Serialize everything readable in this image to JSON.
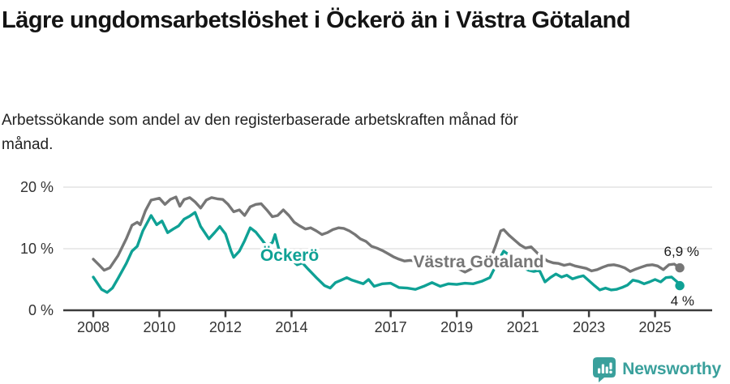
{
  "header": {
    "title": "Lägre ungdomsarbetslöshet i Öckerö än i Västra Götaland",
    "subtitle": "Arbetssökande som andel av den registerbaserade arbetskraften månad för månad."
  },
  "footer": {
    "brand": "Newsworthy",
    "logo_icon": "bar-chart-speech-bubble",
    "brand_color": "#3aa09c"
  },
  "chart_data": {
    "type": "line",
    "title": "Lägre ungdomsarbetslöshet i Öckerö än i Västra Götaland",
    "unit": "%",
    "grid": true,
    "legend_position": "inline-labels",
    "x_axis": {
      "range_years": [
        2007.1,
        2026.7
      ],
      "ticks": [
        {
          "label": "2008",
          "year": 2008
        },
        {
          "label": "2010",
          "year": 2010
        },
        {
          "label": "2012",
          "year": 2012
        },
        {
          "label": "2014",
          "year": 2014
        },
        {
          "label": "2017",
          "year": 2017
        },
        {
          "label": "2019",
          "year": 2019
        },
        {
          "label": "2021",
          "year": 2021
        },
        {
          "label": "2023",
          "year": 2023
        },
        {
          "label": "2025",
          "year": 2025
        }
      ]
    },
    "y_axis": {
      "range": [
        0,
        21
      ],
      "ticks": [
        {
          "label": "0 %",
          "value": 0
        },
        {
          "label": "10 %",
          "value": 10
        },
        {
          "label": "20 %",
          "value": 20
        }
      ]
    },
    "series": [
      {
        "name": "Öckerö",
        "color": "#0fa195",
        "end_label": "4 %",
        "end_value": 4.0,
        "points": [
          [
            2008.0,
            5.4
          ],
          [
            2008.25,
            3.4
          ],
          [
            2008.42,
            2.9
          ],
          [
            2008.58,
            3.6
          ],
          [
            2008.75,
            5.2
          ],
          [
            2009.0,
            7.6
          ],
          [
            2009.17,
            9.6
          ],
          [
            2009.33,
            10.4
          ],
          [
            2009.5,
            12.9
          ],
          [
            2009.75,
            15.4
          ],
          [
            2009.92,
            13.9
          ],
          [
            2010.08,
            14.5
          ],
          [
            2010.25,
            12.6
          ],
          [
            2010.42,
            13.2
          ],
          [
            2010.58,
            13.7
          ],
          [
            2010.75,
            14.8
          ],
          [
            2010.92,
            15.3
          ],
          [
            2011.08,
            15.9
          ],
          [
            2011.25,
            13.6
          ],
          [
            2011.5,
            11.6
          ],
          [
            2011.67,
            12.6
          ],
          [
            2011.83,
            13.6
          ],
          [
            2012.0,
            12.4
          ],
          [
            2012.17,
            9.6
          ],
          [
            2012.25,
            8.6
          ],
          [
            2012.42,
            9.6
          ],
          [
            2012.58,
            11.3
          ],
          [
            2012.75,
            13.4
          ],
          [
            2012.92,
            12.7
          ],
          [
            2013.08,
            11.6
          ],
          [
            2013.25,
            10.4
          ],
          [
            2013.42,
            11.0
          ],
          [
            2013.5,
            12.3
          ],
          [
            2013.62,
            9.8
          ],
          [
            2013.83,
            9.3
          ],
          [
            2014.0,
            8.2
          ],
          [
            2014.17,
            7.4
          ],
          [
            2014.33,
            7.7
          ],
          [
            2014.5,
            6.7
          ],
          [
            2014.75,
            5.3
          ],
          [
            2015.0,
            4.0
          ],
          [
            2015.17,
            3.6
          ],
          [
            2015.33,
            4.5
          ],
          [
            2015.5,
            4.9
          ],
          [
            2015.67,
            5.3
          ],
          [
            2015.83,
            4.9
          ],
          [
            2016.0,
            4.6
          ],
          [
            2016.17,
            4.3
          ],
          [
            2016.33,
            5.0
          ],
          [
            2016.5,
            3.9
          ],
          [
            2016.75,
            4.3
          ],
          [
            2017.0,
            4.4
          ],
          [
            2017.25,
            3.7
          ],
          [
            2017.5,
            3.6
          ],
          [
            2017.75,
            3.4
          ],
          [
            2018.0,
            3.9
          ],
          [
            2018.25,
            4.5
          ],
          [
            2018.5,
            3.9
          ],
          [
            2018.75,
            4.3
          ],
          [
            2019.0,
            4.2
          ],
          [
            2019.25,
            4.4
          ],
          [
            2019.5,
            4.3
          ],
          [
            2019.75,
            4.7
          ],
          [
            2020.0,
            5.3
          ],
          [
            2020.25,
            8.0
          ],
          [
            2020.42,
            9.6
          ],
          [
            2020.58,
            9.0
          ],
          [
            2020.75,
            8.2
          ],
          [
            2021.0,
            7.0
          ],
          [
            2021.17,
            6.5
          ],
          [
            2021.33,
            6.3
          ],
          [
            2021.5,
            6.5
          ],
          [
            2021.67,
            4.6
          ],
          [
            2021.83,
            5.3
          ],
          [
            2022.0,
            5.9
          ],
          [
            2022.17,
            5.4
          ],
          [
            2022.33,
            5.7
          ],
          [
            2022.5,
            5.1
          ],
          [
            2022.67,
            5.4
          ],
          [
            2022.83,
            5.6
          ],
          [
            2023.0,
            4.8
          ],
          [
            2023.17,
            4.0
          ],
          [
            2023.33,
            3.3
          ],
          [
            2023.5,
            3.6
          ],
          [
            2023.67,
            3.3
          ],
          [
            2023.83,
            3.4
          ],
          [
            2024.0,
            3.7
          ],
          [
            2024.17,
            4.1
          ],
          [
            2024.33,
            4.9
          ],
          [
            2024.5,
            4.7
          ],
          [
            2024.67,
            4.3
          ],
          [
            2024.83,
            4.6
          ],
          [
            2025.0,
            5.0
          ],
          [
            2025.17,
            4.6
          ],
          [
            2025.33,
            5.3
          ],
          [
            2025.5,
            5.4
          ],
          [
            2025.67,
            4.6
          ],
          [
            2025.75,
            4.0
          ]
        ]
      },
      {
        "name": "Västra Götaland",
        "color": "#767676",
        "end_label": "6,9 %",
        "end_value": 6.9,
        "points": [
          [
            2008.0,
            8.3
          ],
          [
            2008.17,
            7.4
          ],
          [
            2008.33,
            6.5
          ],
          [
            2008.5,
            6.9
          ],
          [
            2008.75,
            8.9
          ],
          [
            2009.0,
            11.6
          ],
          [
            2009.17,
            13.8
          ],
          [
            2009.33,
            14.3
          ],
          [
            2009.42,
            13.9
          ],
          [
            2009.58,
            16.2
          ],
          [
            2009.75,
            17.9
          ],
          [
            2010.0,
            18.2
          ],
          [
            2010.17,
            17.2
          ],
          [
            2010.33,
            18.0
          ],
          [
            2010.5,
            18.4
          ],
          [
            2010.62,
            16.9
          ],
          [
            2010.75,
            18.0
          ],
          [
            2010.92,
            18.3
          ],
          [
            2011.08,
            17.6
          ],
          [
            2011.25,
            16.6
          ],
          [
            2011.42,
            17.9
          ],
          [
            2011.58,
            18.3
          ],
          [
            2011.75,
            18.1
          ],
          [
            2011.92,
            18.0
          ],
          [
            2012.08,
            17.2
          ],
          [
            2012.25,
            16.0
          ],
          [
            2012.42,
            16.3
          ],
          [
            2012.58,
            15.4
          ],
          [
            2012.75,
            16.8
          ],
          [
            2012.92,
            17.2
          ],
          [
            2013.08,
            17.3
          ],
          [
            2013.25,
            16.3
          ],
          [
            2013.42,
            15.2
          ],
          [
            2013.58,
            15.4
          ],
          [
            2013.75,
            16.3
          ],
          [
            2013.92,
            15.4
          ],
          [
            2014.08,
            14.3
          ],
          [
            2014.25,
            13.7
          ],
          [
            2014.42,
            13.2
          ],
          [
            2014.58,
            13.4
          ],
          [
            2014.75,
            12.9
          ],
          [
            2014.92,
            12.3
          ],
          [
            2015.08,
            12.6
          ],
          [
            2015.25,
            13.1
          ],
          [
            2015.42,
            13.4
          ],
          [
            2015.58,
            13.3
          ],
          [
            2015.75,
            12.9
          ],
          [
            2015.92,
            12.3
          ],
          [
            2016.08,
            11.6
          ],
          [
            2016.25,
            11.2
          ],
          [
            2016.42,
            10.4
          ],
          [
            2016.58,
            10.1
          ],
          [
            2016.75,
            9.7
          ],
          [
            2016.92,
            9.2
          ],
          [
            2017.08,
            8.7
          ],
          [
            2017.25,
            8.3
          ],
          [
            2017.42,
            8.0
          ],
          [
            2017.58,
            8.1
          ],
          [
            2017.75,
            8.0
          ],
          [
            2018.0,
            8.0
          ],
          [
            2018.25,
            7.7
          ],
          [
            2018.5,
            7.3
          ],
          [
            2018.75,
            7.0
          ],
          [
            2019.0,
            6.9
          ],
          [
            2019.25,
            6.2
          ],
          [
            2019.5,
            6.9
          ],
          [
            2019.75,
            7.2
          ],
          [
            2020.0,
            8.0
          ],
          [
            2020.17,
            10.4
          ],
          [
            2020.33,
            12.9
          ],
          [
            2020.42,
            13.1
          ],
          [
            2020.58,
            12.2
          ],
          [
            2020.75,
            11.4
          ],
          [
            2020.92,
            10.6
          ],
          [
            2021.08,
            10.1
          ],
          [
            2021.25,
            10.3
          ],
          [
            2021.42,
            9.4
          ],
          [
            2021.58,
            8.6
          ],
          [
            2021.75,
            8.0
          ],
          [
            2021.92,
            7.7
          ],
          [
            2022.08,
            7.6
          ],
          [
            2022.25,
            7.3
          ],
          [
            2022.42,
            7.5
          ],
          [
            2022.58,
            7.2
          ],
          [
            2022.75,
            7.0
          ],
          [
            2022.92,
            6.8
          ],
          [
            2023.08,
            6.4
          ],
          [
            2023.25,
            6.6
          ],
          [
            2023.42,
            7.0
          ],
          [
            2023.58,
            7.3
          ],
          [
            2023.75,
            7.4
          ],
          [
            2023.92,
            7.2
          ],
          [
            2024.08,
            6.9
          ],
          [
            2024.25,
            6.3
          ],
          [
            2024.42,
            6.7
          ],
          [
            2024.58,
            7.0
          ],
          [
            2024.75,
            7.3
          ],
          [
            2024.92,
            7.4
          ],
          [
            2025.08,
            7.2
          ],
          [
            2025.25,
            6.6
          ],
          [
            2025.42,
            7.4
          ],
          [
            2025.58,
            7.5
          ],
          [
            2025.75,
            6.9
          ]
        ]
      }
    ]
  }
}
